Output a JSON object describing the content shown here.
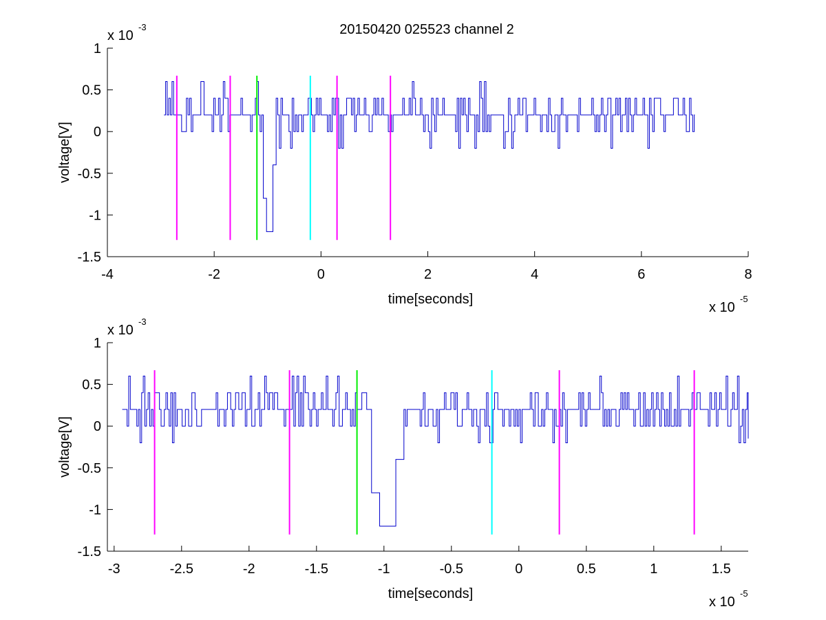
{
  "title": "20150420 025523 channel 2",
  "colors": {
    "signal": "#0000cc",
    "magenta": "#ff00ff",
    "green": "#00ee00",
    "cyan": "#00ffff",
    "axis": "#000000"
  },
  "chart_data": [
    {
      "type": "line",
      "title": "20150420 025523 channel 2",
      "xlabel": "time[seconds]",
      "ylabel": "voltage[V]",
      "x_multiplier": "x 10",
      "x_exponent": "-5",
      "y_multiplier": "x 10",
      "y_exponent": "-3",
      "xlim": [
        -4,
        8
      ],
      "ylim": [
        -1.5,
        1
      ],
      "x_ticks": [
        -4,
        -2,
        0,
        2,
        4,
        6,
        8
      ],
      "x_tick_labels": [
        "-4",
        "-2",
        "0",
        "2",
        "4",
        "6",
        "8"
      ],
      "y_ticks": [
        -1.5,
        -1,
        -0.5,
        0,
        0.5,
        1
      ],
      "y_tick_labels": [
        "-1.5",
        "-1",
        "-0.5",
        "0",
        "0.5",
        "1"
      ],
      "grid": false,
      "signal": {
        "x_start": -2.94,
        "x_end": 7.0,
        "baseline": 0.2,
        "noise_levels": [
          0,
          0.2,
          0.4
        ],
        "dip": {
          "x": -0.98,
          "y": -1.2
        }
      },
      "markers": [
        {
          "x": -2.7,
          "color": "magenta",
          "ymin": -1.3,
          "ymax": 0.67
        },
        {
          "x": -1.7,
          "color": "magenta",
          "ymin": -1.3,
          "ymax": 0.67
        },
        {
          "x": -1.2,
          "color": "green",
          "ymin": -1.3,
          "ymax": 0.67
        },
        {
          "x": -0.2,
          "color": "cyan",
          "ymin": -1.3,
          "ymax": 0.67
        },
        {
          "x": 0.3,
          "color": "magenta",
          "ymin": -1.3,
          "ymax": 0.67
        },
        {
          "x": 1.3,
          "color": "magenta",
          "ymin": -1.3,
          "ymax": 0.67
        }
      ]
    },
    {
      "type": "line",
      "xlabel": "time[seconds]",
      "ylabel": "voltage[V]",
      "x_multiplier": "x 10",
      "x_exponent": "-5",
      "y_multiplier": "x 10",
      "y_exponent": "-3",
      "xlim": [
        -3.05,
        1.7
      ],
      "ylim": [
        -1.5,
        1
      ],
      "x_ticks": [
        -3,
        -2.5,
        -2,
        -1.5,
        -1,
        -0.5,
        0,
        0.5,
        1,
        1.5
      ],
      "x_tick_labels": [
        "-3",
        "-2.5",
        "-2",
        "-1.5",
        "-1",
        "-0.5",
        "0",
        "0.5",
        "1",
        "1.5"
      ],
      "y_ticks": [
        -1.5,
        -1,
        -0.5,
        0,
        0.5,
        1
      ],
      "y_tick_labels": [
        "-1.5",
        "-1",
        "-0.5",
        "0",
        "0.5",
        "1"
      ],
      "grid": false,
      "signal": {
        "x_start": -2.94,
        "x_end": 1.7,
        "baseline": 0.2,
        "noise_levels": [
          0,
          0.2,
          0.4
        ],
        "dip": {
          "x": -0.98,
          "y": -1.2
        }
      },
      "markers": [
        {
          "x": -2.7,
          "color": "magenta",
          "ymin": -1.3,
          "ymax": 0.67
        },
        {
          "x": -1.7,
          "color": "magenta",
          "ymin": -1.3,
          "ymax": 0.67
        },
        {
          "x": -1.2,
          "color": "green",
          "ymin": -1.3,
          "ymax": 0.67
        },
        {
          "x": -0.2,
          "color": "cyan",
          "ymin": -1.3,
          "ymax": 0.67
        },
        {
          "x": 0.3,
          "color": "magenta",
          "ymin": -1.3,
          "ymax": 0.67
        },
        {
          "x": 1.3,
          "color": "magenta",
          "ymin": -1.3,
          "ymax": 0.67
        }
      ]
    }
  ]
}
